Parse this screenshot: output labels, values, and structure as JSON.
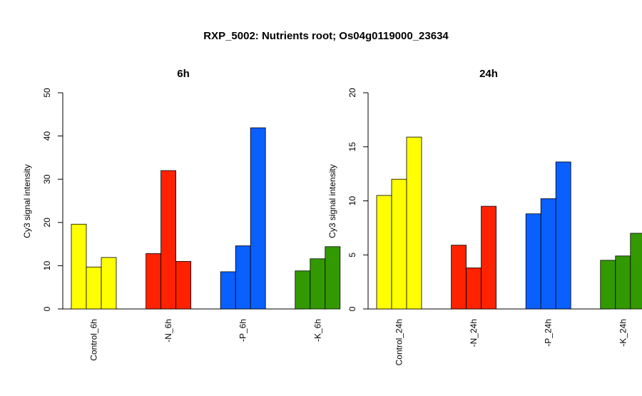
{
  "figure": {
    "title": "RXP_5002: Nutrients root; Os04g0119000_23634"
  },
  "colors": {
    "control": "#FFFF00",
    "minus_n": "#FF2200",
    "minus_p": "#0A5FFF",
    "minus_k": "#339900",
    "bar_stroke": "#000000"
  },
  "chart_data": [
    {
      "type": "bar",
      "title": "6h",
      "ylabel": "Cy3 signal intensity",
      "ylim": [
        0,
        50
      ],
      "yticks": [
        0,
        10,
        20,
        30,
        40,
        50
      ],
      "groups": [
        {
          "label": "Control_6h",
          "color_key": "control",
          "values": [
            19.6,
            9.7,
            11.9
          ]
        },
        {
          "label": "-N_6h",
          "color_key": "minus_n",
          "values": [
            12.8,
            32.0,
            11.0
          ]
        },
        {
          "label": "-P_6h",
          "color_key": "minus_p",
          "values": [
            8.6,
            14.6,
            41.9
          ]
        },
        {
          "label": "-K_6h",
          "color_key": "minus_k",
          "values": [
            8.8,
            11.6,
            14.4
          ]
        }
      ]
    },
    {
      "type": "bar",
      "title": "24h",
      "ylabel": "Cy3 signal intensity",
      "ylim": [
        0,
        20
      ],
      "yticks": [
        0,
        5,
        10,
        15,
        20
      ],
      "groups": [
        {
          "label": "Control_24h",
          "color_key": "control",
          "values": [
            10.5,
            12.0,
            15.9
          ]
        },
        {
          "label": "-N_24h",
          "color_key": "minus_n",
          "values": [
            5.9,
            3.8,
            9.5
          ]
        },
        {
          "label": "-P_24h",
          "color_key": "minus_p",
          "values": [
            8.8,
            10.2,
            13.6
          ]
        },
        {
          "label": "-K_24h",
          "color_key": "minus_k",
          "values": [
            4.5,
            4.9,
            7.0
          ]
        }
      ]
    }
  ]
}
